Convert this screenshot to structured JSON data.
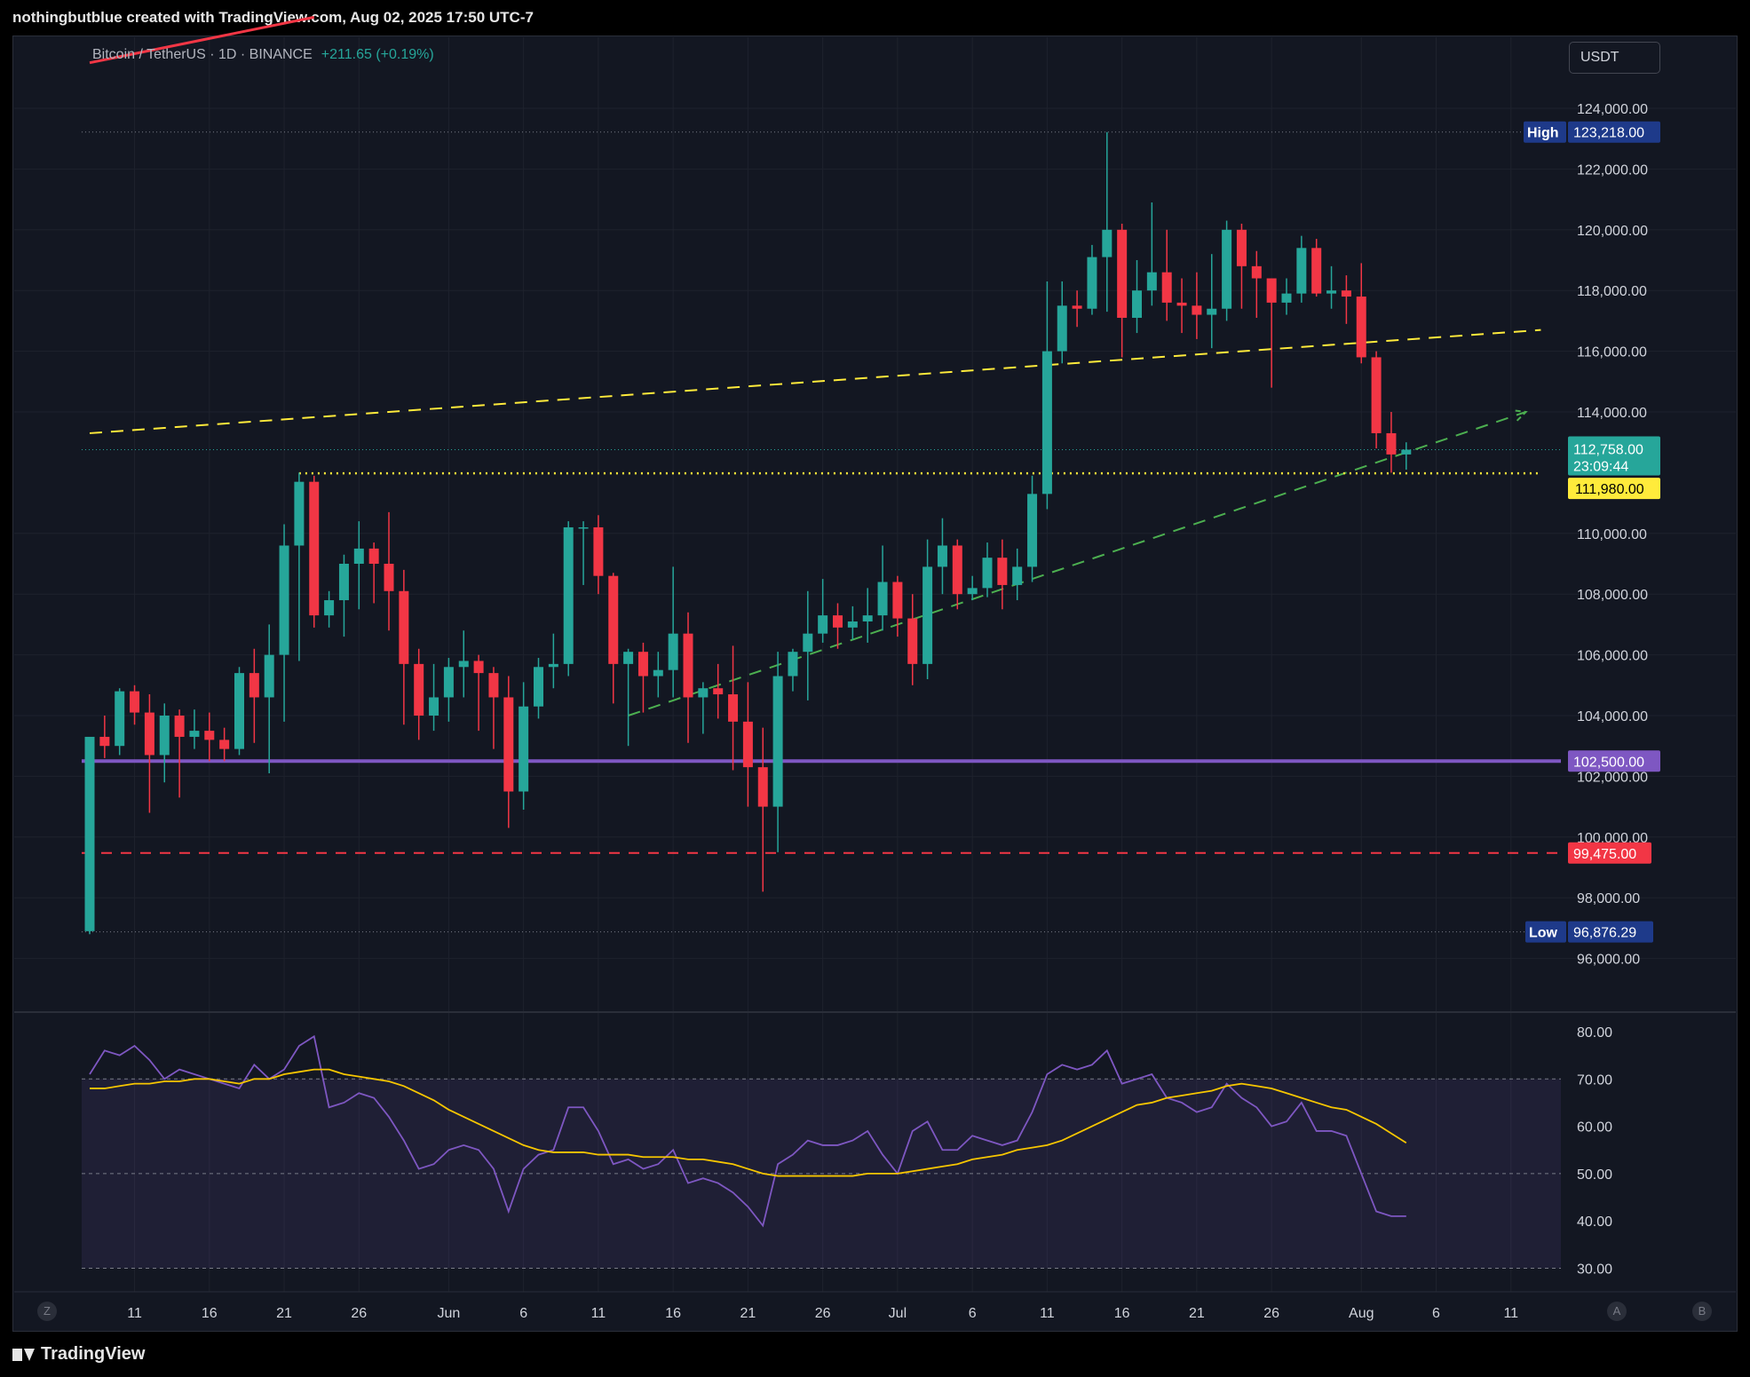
{
  "header": {
    "credit": "nothingbutblue created with TradingView.com, Aug 02, 2025 17:50 UTC-7"
  },
  "footer": {
    "brand": "TradingView"
  },
  "legend": {
    "symbol": "Bitcoin / TetherUS · 1D · BINANCE",
    "change": "+211.65 (+0.19%)"
  },
  "currency": "USDT",
  "corner_buttons": {
    "left": "Z",
    "a": "A",
    "b": "B"
  },
  "colors": {
    "up": "#26a69a",
    "down": "#f23645",
    "background": "#131722",
    "grid": "#1e222d",
    "yellow": "#ffeb3b",
    "purple": "#7e57c2",
    "green_dash": "#4caf50",
    "red": "#f23645",
    "rsi": "#7e57c2",
    "rsi_ma": "#f7c600"
  },
  "chart_data": [
    {
      "type": "candlestick",
      "yticks": [
        "124,000.00",
        "122,000.00",
        "120,000.00",
        "118,000.00",
        "116,000.00",
        "114,000.00",
        "110,000.00",
        "108,000.00",
        "106,000.00",
        "104,000.00",
        "102,000.00",
        "100,000.00",
        "98,000.00",
        "96,000.00"
      ],
      "xticks": [
        {
          "label": "11",
          "x": "2025-05-11"
        },
        {
          "label": "16",
          "x": "2025-05-16"
        },
        {
          "label": "21",
          "x": "2025-05-21"
        },
        {
          "label": "26",
          "x": "2025-05-26"
        },
        {
          "label": "Jun",
          "x": "2025-06-01"
        },
        {
          "label": "6",
          "x": "2025-06-06"
        },
        {
          "label": "11",
          "x": "2025-06-11"
        },
        {
          "label": "16",
          "x": "2025-06-16"
        },
        {
          "label": "21",
          "x": "2025-06-21"
        },
        {
          "label": "26",
          "x": "2025-06-26"
        },
        {
          "label": "Jul",
          "x": "2025-07-01"
        },
        {
          "label": "6",
          "x": "2025-07-06"
        },
        {
          "label": "11",
          "x": "2025-07-11"
        },
        {
          "label": "16",
          "x": "2025-07-16"
        },
        {
          "label": "21",
          "x": "2025-07-21"
        },
        {
          "label": "26",
          "x": "2025-07-26"
        },
        {
          "label": "Aug",
          "x": "2025-08-01"
        },
        {
          "label": "6",
          "x": "2025-08-06"
        },
        {
          "label": "11",
          "x": "2025-08-11"
        }
      ],
      "start_date": "2025-05-08",
      "candles": [
        [
          96900,
          103300,
          103300,
          96800
        ],
        [
          103300,
          103000,
          104000,
          102600
        ],
        [
          103000,
          104800,
          104900,
          102700
        ],
        [
          104800,
          104100,
          105000,
          103700
        ],
        [
          104100,
          102700,
          104700,
          100800
        ],
        [
          102700,
          104000,
          104400,
          101800
        ],
        [
          104000,
          103300,
          104200,
          101300
        ],
        [
          103300,
          103500,
          104200,
          102900
        ],
        [
          103500,
          103200,
          104100,
          102500
        ],
        [
          103200,
          102900,
          103600,
          102500
        ],
        [
          102900,
          105400,
          105600,
          102700
        ],
        [
          105400,
          104600,
          106200,
          103100
        ],
        [
          104600,
          106000,
          107000,
          102100
        ],
        [
          106000,
          109600,
          110300,
          103800
        ],
        [
          109600,
          111700,
          112000,
          105800
        ],
        [
          111700,
          107300,
          111900,
          106900
        ],
        [
          107300,
          107800,
          108100,
          106900
        ],
        [
          107800,
          109000,
          109300,
          106600
        ],
        [
          109000,
          109500,
          110400,
          107500
        ],
        [
          109500,
          109000,
          109700,
          107700
        ],
        [
          109000,
          108100,
          110700,
          106800
        ],
        [
          108100,
          105700,
          108800,
          103700
        ],
        [
          105700,
          104000,
          106200,
          103200
        ],
        [
          104000,
          104600,
          105700,
          103500
        ],
        [
          104600,
          105600,
          105900,
          103800
        ],
        [
          105600,
          105800,
          106800,
          104600
        ],
        [
          105800,
          105400,
          106000,
          103500
        ],
        [
          105400,
          104600,
          105600,
          102900
        ],
        [
          104600,
          101500,
          105300,
          100300
        ],
        [
          101500,
          104300,
          105100,
          100900
        ],
        [
          104300,
          105600,
          105900,
          103900
        ],
        [
          105600,
          105700,
          106700,
          104900
        ],
        [
          105700,
          110200,
          110400,
          105300
        ],
        [
          110200,
          110200,
          110400,
          108300
        ],
        [
          110200,
          108600,
          110600,
          108000
        ],
        [
          108600,
          105700,
          108700,
          104400
        ],
        [
          105700,
          106100,
          106200,
          103000
        ],
        [
          106100,
          105300,
          106400,
          104100
        ],
        [
          105300,
          105500,
          106100,
          104600
        ],
        [
          105500,
          106700,
          108900,
          104600
        ],
        [
          106700,
          104600,
          107400,
          103100
        ],
        [
          104600,
          104900,
          105100,
          103400
        ],
        [
          104900,
          104700,
          105700,
          103900
        ],
        [
          104700,
          103800,
          106300,
          102200
        ],
        [
          103800,
          102300,
          105100,
          101000
        ],
        [
          102300,
          101000,
          103600,
          98200
        ],
        [
          101000,
          105300,
          106100,
          99500
        ],
        [
          105300,
          106100,
          106200,
          104800
        ],
        [
          106100,
          106700,
          108100,
          104500
        ],
        [
          106700,
          107300,
          108500,
          106400
        ],
        [
          107300,
          106900,
          107700,
          106200
        ],
        [
          106900,
          107100,
          107600,
          106500
        ],
        [
          107100,
          107300,
          108200,
          106400
        ],
        [
          107300,
          108400,
          109600,
          106800
        ],
        [
          108400,
          107200,
          108600,
          106600
        ],
        [
          107200,
          105700,
          108000,
          105000
        ],
        [
          105700,
          108900,
          109800,
          105200
        ],
        [
          108900,
          109600,
          110500,
          108000
        ],
        [
          109600,
          108000,
          109800,
          107500
        ],
        [
          108000,
          108200,
          108600,
          107800
        ],
        [
          108200,
          109200,
          109700,
          107900
        ],
        [
          109200,
          108300,
          109800,
          107500
        ],
        [
          108300,
          108900,
          109500,
          107800
        ],
        [
          108900,
          111300,
          111900,
          108400
        ],
        [
          111300,
          116000,
          118300,
          110800
        ],
        [
          116000,
          117500,
          118300,
          115600
        ],
        [
          117500,
          117400,
          118000,
          116800
        ],
        [
          117400,
          119100,
          119500,
          117200
        ],
        [
          119100,
          120000,
          123218,
          117300
        ],
        [
          120000,
          117100,
          120200,
          115800
        ],
        [
          117100,
          118000,
          119000,
          116600
        ],
        [
          118000,
          118600,
          120900,
          117500
        ],
        [
          118600,
          117600,
          120000,
          117000
        ],
        [
          117600,
          117500,
          118400,
          116600
        ],
        [
          117500,
          117200,
          118600,
          116400
        ],
        [
          117200,
          117400,
          119200,
          116100
        ],
        [
          117400,
          120000,
          120300,
          117000
        ],
        [
          120000,
          118800,
          120200,
          117400
        ],
        [
          118800,
          118400,
          119300,
          117100
        ],
        [
          118400,
          117600,
          118300,
          114800
        ],
        [
          117600,
          117900,
          118400,
          117200
        ],
        [
          117900,
          119400,
          119800,
          117600
        ],
        [
          119400,
          117900,
          119700,
          117800
        ],
        [
          117900,
          118000,
          118800,
          117400
        ],
        [
          118000,
          117800,
          118500,
          116900
        ],
        [
          117800,
          115800,
          118900,
          115600
        ],
        [
          115800,
          113300,
          116000,
          112800
        ],
        [
          113300,
          112600,
          114000,
          112000
        ],
        [
          112600,
          112758,
          113000,
          112100
        ]
      ],
      "price_labels": {
        "high": {
          "label": "High",
          "value": "123,218.00"
        },
        "low": {
          "label": "Low",
          "value": "96,876.29"
        },
        "current": {
          "value": "112,758.00",
          "countdown": "23:09:44"
        },
        "yellow": {
          "value": "111,980.00"
        },
        "purple": {
          "value": "102,500.00"
        },
        "red": {
          "value": "99,475.00"
        }
      },
      "levels": {
        "high": 123218,
        "low": 96876.29,
        "current": 112758,
        "yellow": 111980,
        "purple": 102500,
        "red": 99475
      },
      "lines": [
        {
          "kind": "solid",
          "color": "red",
          "from": [
            "2025-05-08",
            125500
          ],
          "to": [
            "2025-05-23",
            127000
          ]
        },
        {
          "kind": "dashed",
          "color": "yellow",
          "from": [
            "2025-05-08",
            113300
          ],
          "to": [
            "2025-08-13",
            116700
          ]
        },
        {
          "kind": "dashed",
          "color": "green",
          "from": [
            "2025-06-13",
            104000
          ],
          "to": [
            "2025-08-12",
            114000
          ]
        },
        {
          "kind": "dotted",
          "color": "yellow",
          "from": [
            "2025-05-22",
            111980
          ],
          "to": [
            "2025-08-13",
            111980
          ]
        }
      ]
    },
    {
      "type": "line",
      "name": "RSI",
      "yticks": [
        "80.00",
        "70.00",
        "60.00",
        "50.00",
        "40.00",
        "30.00"
      ],
      "rsi": [
        71,
        76,
        75,
        77,
        74,
        70,
        72,
        71,
        70,
        69,
        68,
        73,
        70,
        72,
        77,
        79,
        64,
        65,
        67,
        66,
        62,
        57,
        51,
        52,
        55,
        56,
        55,
        51,
        42,
        51,
        54,
        55,
        64,
        64,
        59,
        52,
        53,
        51,
        52,
        55,
        48,
        49,
        48,
        46,
        43,
        39,
        52,
        54,
        57,
        56,
        56,
        57,
        59,
        54,
        50,
        59,
        61,
        55,
        55,
        58,
        57,
        56,
        57,
        63,
        71,
        73,
        72,
        73,
        76,
        69,
        70,
        71,
        66,
        65,
        63,
        64,
        69,
        66,
        64,
        60,
        61,
        65,
        59,
        59,
        58,
        50,
        42,
        41,
        41
      ],
      "rsi_ma": [
        68,
        68,
        68.5,
        69,
        69,
        69.5,
        69.5,
        70,
        70,
        69.5,
        69,
        70,
        70,
        71,
        71.5,
        72,
        72,
        71,
        70.5,
        70,
        69.5,
        68.5,
        67,
        65.5,
        63.5,
        62,
        60.5,
        59,
        57.5,
        56,
        55,
        54.5,
        54.5,
        54.5,
        54,
        54,
        54,
        53.5,
        53.5,
        53.5,
        53,
        53,
        52.5,
        52,
        51,
        50,
        49.5,
        49.5,
        49.5,
        49.5,
        49.5,
        49.5,
        50,
        50,
        50,
        50.5,
        51,
        51.5,
        52,
        53,
        53.5,
        54,
        55,
        55.5,
        56,
        57,
        58.5,
        60,
        61.5,
        63,
        64.5,
        65,
        66,
        66.5,
        67,
        67.5,
        68.5,
        69,
        68.5,
        68,
        67,
        66,
        65,
        64,
        63.5,
        62,
        60.5,
        58.5,
        56.5
      ]
    }
  ]
}
